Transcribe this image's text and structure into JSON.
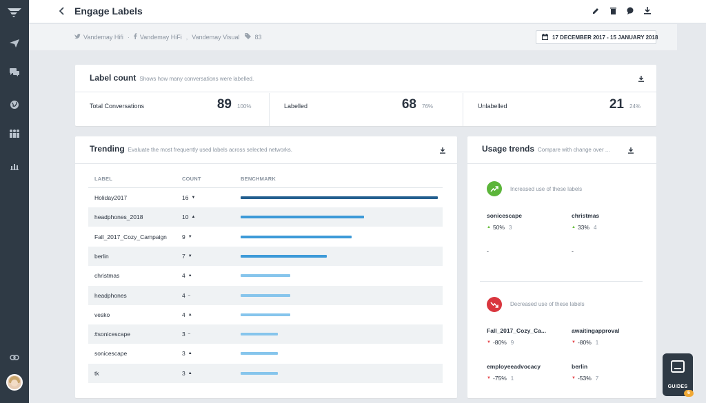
{
  "header": {
    "title": "Engage Labels"
  },
  "filters": {
    "source_twitter": "Vandemay Hifi",
    "dot_sep": "·",
    "source_facebook_1": "Vandemay HiFi",
    "comma_sep": ",",
    "source_facebook_2": "Vandemay Visual",
    "tag_count": "83",
    "date_range": "17 DECEMBER 2017 - 15 JANUARY 2018"
  },
  "label_count": {
    "title": "Label count",
    "subtitle": "Shows how many conversations were labelled.",
    "stats": [
      {
        "label": "Total Conversations",
        "value": "89",
        "pct": "100%"
      },
      {
        "label": "Labelled",
        "value": "68",
        "pct": "76%"
      },
      {
        "label": "Unlabelled",
        "value": "21",
        "pct": "24%"
      }
    ]
  },
  "trending": {
    "title": "Trending",
    "subtitle": "Evaluate the most frequently used labels across selected networks.",
    "columns": {
      "label": "LABEL",
      "count": "COUNT",
      "benchmark": "BENCHMARK"
    },
    "rows": [
      {
        "label": "Holiday2017",
        "count": "16",
        "trend": "down",
        "benchmark": 16,
        "color": "#235f8f"
      },
      {
        "label": "headphones_2018",
        "count": "10",
        "trend": "up",
        "benchmark": 10,
        "color": "#3d9ad8"
      },
      {
        "label": "Fall_2017_Cozy_Campaign",
        "count": "9",
        "trend": "down",
        "benchmark": 9,
        "color": "#3d9ad8"
      },
      {
        "label": "berlin",
        "count": "7",
        "trend": "down",
        "benchmark": 7,
        "color": "#3d9ad8"
      },
      {
        "label": "christmas",
        "count": "4",
        "trend": "up",
        "benchmark": 4,
        "color": "#86c5ec"
      },
      {
        "label": "headphones",
        "count": "4",
        "trend": "flat",
        "benchmark": 4,
        "color": "#86c5ec"
      },
      {
        "label": "vesko",
        "count": "4",
        "trend": "up",
        "benchmark": 4,
        "color": "#86c5ec"
      },
      {
        "label": "#sonicescape",
        "count": "3",
        "trend": "flat",
        "benchmark": 3,
        "color": "#86c5ec"
      },
      {
        "label": "sonicescape",
        "count": "3",
        "trend": "up",
        "benchmark": 3,
        "color": "#86c5ec"
      },
      {
        "label": "tk",
        "count": "3",
        "trend": "up",
        "benchmark": 3,
        "color": "#86c5ec"
      }
    ]
  },
  "usage_trends": {
    "title": "Usage trends",
    "subtitle": "Compare with change over ...",
    "increased": {
      "label": "Increased use of these labels",
      "color": "#5cb53a",
      "items": [
        {
          "name": "sonicescape",
          "pct": "50%",
          "count": "3"
        },
        {
          "name": "christmas",
          "pct": "33%",
          "count": "4"
        }
      ],
      "placeholders": [
        "-",
        "-"
      ]
    },
    "decreased": {
      "label": "Decreased use of these labels",
      "color": "#d9363e",
      "items": [
        {
          "name": "Fall_2017_Cozy_Ca...",
          "pct": "-80%",
          "count": "9"
        },
        {
          "name": "awaitingapproval",
          "pct": "-80%",
          "count": "1"
        },
        {
          "name": "employeeadvocacy",
          "pct": "-75%",
          "count": "1"
        },
        {
          "name": "berlin",
          "pct": "-53%",
          "count": "7"
        }
      ]
    }
  },
  "guides": {
    "label": "GUIDES",
    "badge": "6"
  },
  "colors": {
    "sidebar": "#2f3a45",
    "accent_dark_bar": "#235f8f",
    "accent_mid_bar": "#3d9ad8",
    "accent_light_bar": "#86c5ec"
  }
}
